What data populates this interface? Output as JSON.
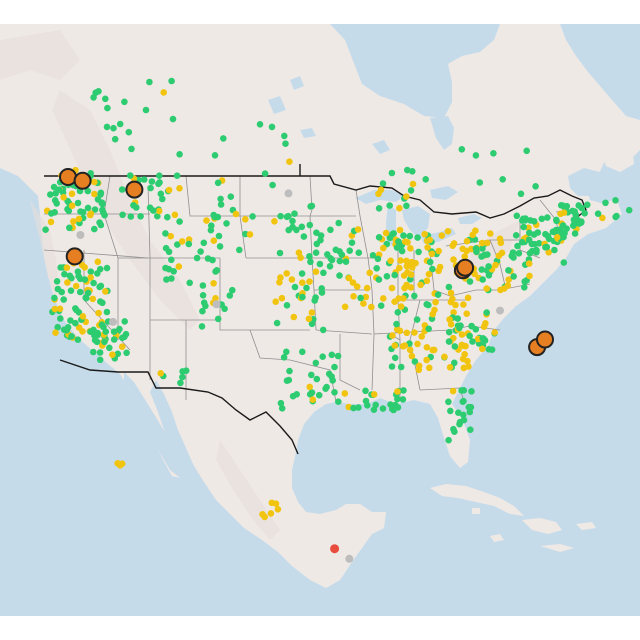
{
  "map": {
    "colors": {
      "water": "#c6dbea",
      "land": "#efe9e6",
      "land_us": "#f2ecea",
      "terrain": "#e6dfdc",
      "country_border": "#1a1a1a",
      "state_border": "#8f8f8f"
    },
    "legend_colors": {
      "good": "#2ecc71",
      "moderate": "#f1c40f",
      "usg": "#e67e22",
      "unhealthy": "#e74c3c",
      "no_data": "#bdbdbd"
    },
    "markers": {
      "large": [
        {
          "lon": -122.8,
          "lat": 48.9
        },
        {
          "lon": -121.5,
          "lat": 48.6
        },
        {
          "lon": -116.9,
          "lat": 47.9
        },
        {
          "lon": -122.2,
          "lat": 42.6
        },
        {
          "lon": -87.7,
          "lat": 41.5
        },
        {
          "lon": -87.5,
          "lat": 41.7
        },
        {
          "lon": -81.1,
          "lat": 35.4
        },
        {
          "lon": -80.4,
          "lat": 36.0
        }
      ],
      "red": [
        {
          "lon": -99.1,
          "lat": 19.4
        }
      ],
      "gray": [
        {
          "lon": -103.2,
          "lat": 47.6
        },
        {
          "lon": -97.8,
          "lat": 18.6
        },
        {
          "lon": -84.4,
          "lat": 38.3
        },
        {
          "lon": -109.6,
          "lat": 38.8
        },
        {
          "lon": -118.8,
          "lat": 37.4
        },
        {
          "lon": -121.7,
          "lat": 44.3
        }
      ]
    }
  }
}
